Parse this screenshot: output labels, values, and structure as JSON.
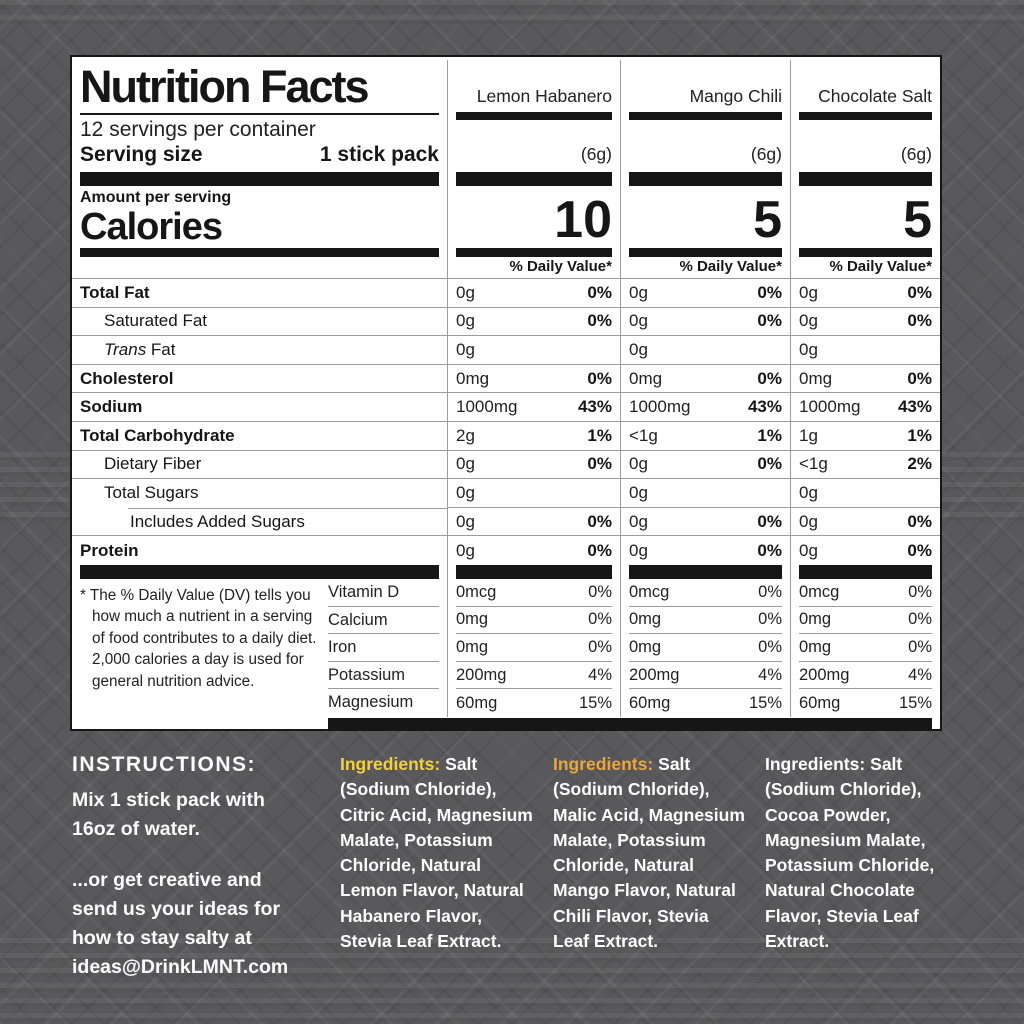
{
  "panel": {
    "title": "Nutrition Facts",
    "servings_per_container": "12 servings per container",
    "serving_size_label": "Serving size",
    "serving_size_value": "1 stick pack",
    "amount_per_serving": "Amount per serving",
    "calories_label": "Calories",
    "daily_value_header": "% Daily Value*",
    "flavors": [
      {
        "name": "Lemon Habanero",
        "serving_weight": "(6g)",
        "calories": "10"
      },
      {
        "name": "Mango Chili",
        "serving_weight": "(6g)",
        "calories": "5"
      },
      {
        "name": "Chocolate Salt",
        "serving_weight": "(6g)",
        "calories": "5"
      }
    ],
    "rows": [
      {
        "name": "Total Fat",
        "cells": [
          {
            "amount": "0g",
            "dv": "0%"
          },
          {
            "amount": "0g",
            "dv": "0%"
          },
          {
            "amount": "0g",
            "dv": "0%"
          }
        ]
      },
      {
        "name": "Saturated Fat",
        "cells": [
          {
            "amount": "0g",
            "dv": "0%"
          },
          {
            "amount": "0g",
            "dv": "0%"
          },
          {
            "amount": "0g",
            "dv": "0%"
          }
        ]
      },
      {
        "name_italic": "Trans",
        "name": " Fat",
        "cells": [
          {
            "amount": "0g",
            "dv": ""
          },
          {
            "amount": "0g",
            "dv": ""
          },
          {
            "amount": "0g",
            "dv": ""
          }
        ]
      },
      {
        "name": "Cholesterol",
        "cells": [
          {
            "amount": "0mg",
            "dv": "0%"
          },
          {
            "amount": "0mg",
            "dv": "0%"
          },
          {
            "amount": "0mg",
            "dv": "0%"
          }
        ]
      },
      {
        "name": "Sodium",
        "cells": [
          {
            "amount": "1000mg",
            "dv": "43%"
          },
          {
            "amount": "1000mg",
            "dv": "43%"
          },
          {
            "amount": "1000mg",
            "dv": "43%"
          }
        ]
      },
      {
        "name": "Total Carbohydrate",
        "cells": [
          {
            "amount": "2g",
            "dv": "1%"
          },
          {
            "amount": "<1g",
            "dv": "1%"
          },
          {
            "amount": "1g",
            "dv": "1%"
          }
        ]
      },
      {
        "name": "Dietary Fiber",
        "cells": [
          {
            "amount": "0g",
            "dv": "0%"
          },
          {
            "amount": "0g",
            "dv": "0%"
          },
          {
            "amount": "<1g",
            "dv": "2%"
          }
        ]
      },
      {
        "name": "Total Sugars",
        "cells": [
          {
            "amount": "0g",
            "dv": ""
          },
          {
            "amount": "0g",
            "dv": ""
          },
          {
            "amount": "0g",
            "dv": ""
          }
        ]
      },
      {
        "name": "Includes Added Sugars",
        "cells": [
          {
            "amount": "0g",
            "dv": "0%"
          },
          {
            "amount": "0g",
            "dv": "0%"
          },
          {
            "amount": "0g",
            "dv": "0%"
          }
        ]
      },
      {
        "name": "Protein",
        "cells": [
          {
            "amount": "0g",
            "dv": "0%"
          },
          {
            "amount": "0g",
            "dv": "0%"
          },
          {
            "amount": "0g",
            "dv": "0%"
          }
        ]
      }
    ],
    "footnote": "* The % Daily Value (DV) tells you how much a nutrient in a serving of food contributes to a daily diet. 2,000 calories a day is used for general nutrition advice.",
    "vitamins": [
      {
        "name": "Vitamin D",
        "cells": [
          {
            "amount": "0mcg",
            "dv": "0%"
          },
          {
            "amount": "0mcg",
            "dv": "0%"
          },
          {
            "amount": "0mcg",
            "dv": "0%"
          }
        ]
      },
      {
        "name": "Calcium",
        "cells": [
          {
            "amount": "0mg",
            "dv": "0%"
          },
          {
            "amount": "0mg",
            "dv": "0%"
          },
          {
            "amount": "0mg",
            "dv": "0%"
          }
        ]
      },
      {
        "name": "Iron",
        "cells": [
          {
            "amount": "0mg",
            "dv": "0%"
          },
          {
            "amount": "0mg",
            "dv": "0%"
          },
          {
            "amount": "0mg",
            "dv": "0%"
          }
        ]
      },
      {
        "name": "Potassium",
        "cells": [
          {
            "amount": "200mg",
            "dv": "4%"
          },
          {
            "amount": "200mg",
            "dv": "4%"
          },
          {
            "amount": "200mg",
            "dv": "4%"
          }
        ]
      },
      {
        "name": "Magnesium",
        "cells": [
          {
            "amount": "60mg",
            "dv": "15%"
          },
          {
            "amount": "60mg",
            "dv": "15%"
          },
          {
            "amount": "60mg",
            "dv": "15%"
          }
        ]
      }
    ]
  },
  "instructions": {
    "heading": "INSTRUCTIONS:",
    "p1": "Mix 1 stick pack with 16oz of water.",
    "p2": "...or get creative and send us your ideas for how to stay salty at ideas@DrinkLMNT.com"
  },
  "ingredients": [
    {
      "label": "Ingredients:",
      "label_color": "#f2d13c",
      "text": "Salt (Sodium Chloride), Citric Acid, Magnesium Malate, Potassium Chloride, Natural Lemon Flavor, Natural Habanero Flavor, Stevia Leaf Extract."
    },
    {
      "label": "Ingredients:",
      "label_color": "#e9a53e",
      "text": "Salt (Sodium Chloride), Malic Acid, Magnesium Malate, Potassium Chloride, Natural Mango Flavor, Natural Chili Flavor, Stevia Leaf Extract."
    },
    {
      "label": "Ingredients:",
      "label_color": "#ffffff",
      "text": "Salt (Sodium Chloride), Cocoa Powder, Magnesium Malate, Potassium Chloride, Natural Chocolate Flavor, Stevia Leaf Extract."
    }
  ],
  "colors": {
    "background": "#59595b",
    "panel": "#ffffff",
    "ink": "#161616",
    "accent_yellow": "#f2d13c",
    "accent_orange": "#e9a53e"
  }
}
